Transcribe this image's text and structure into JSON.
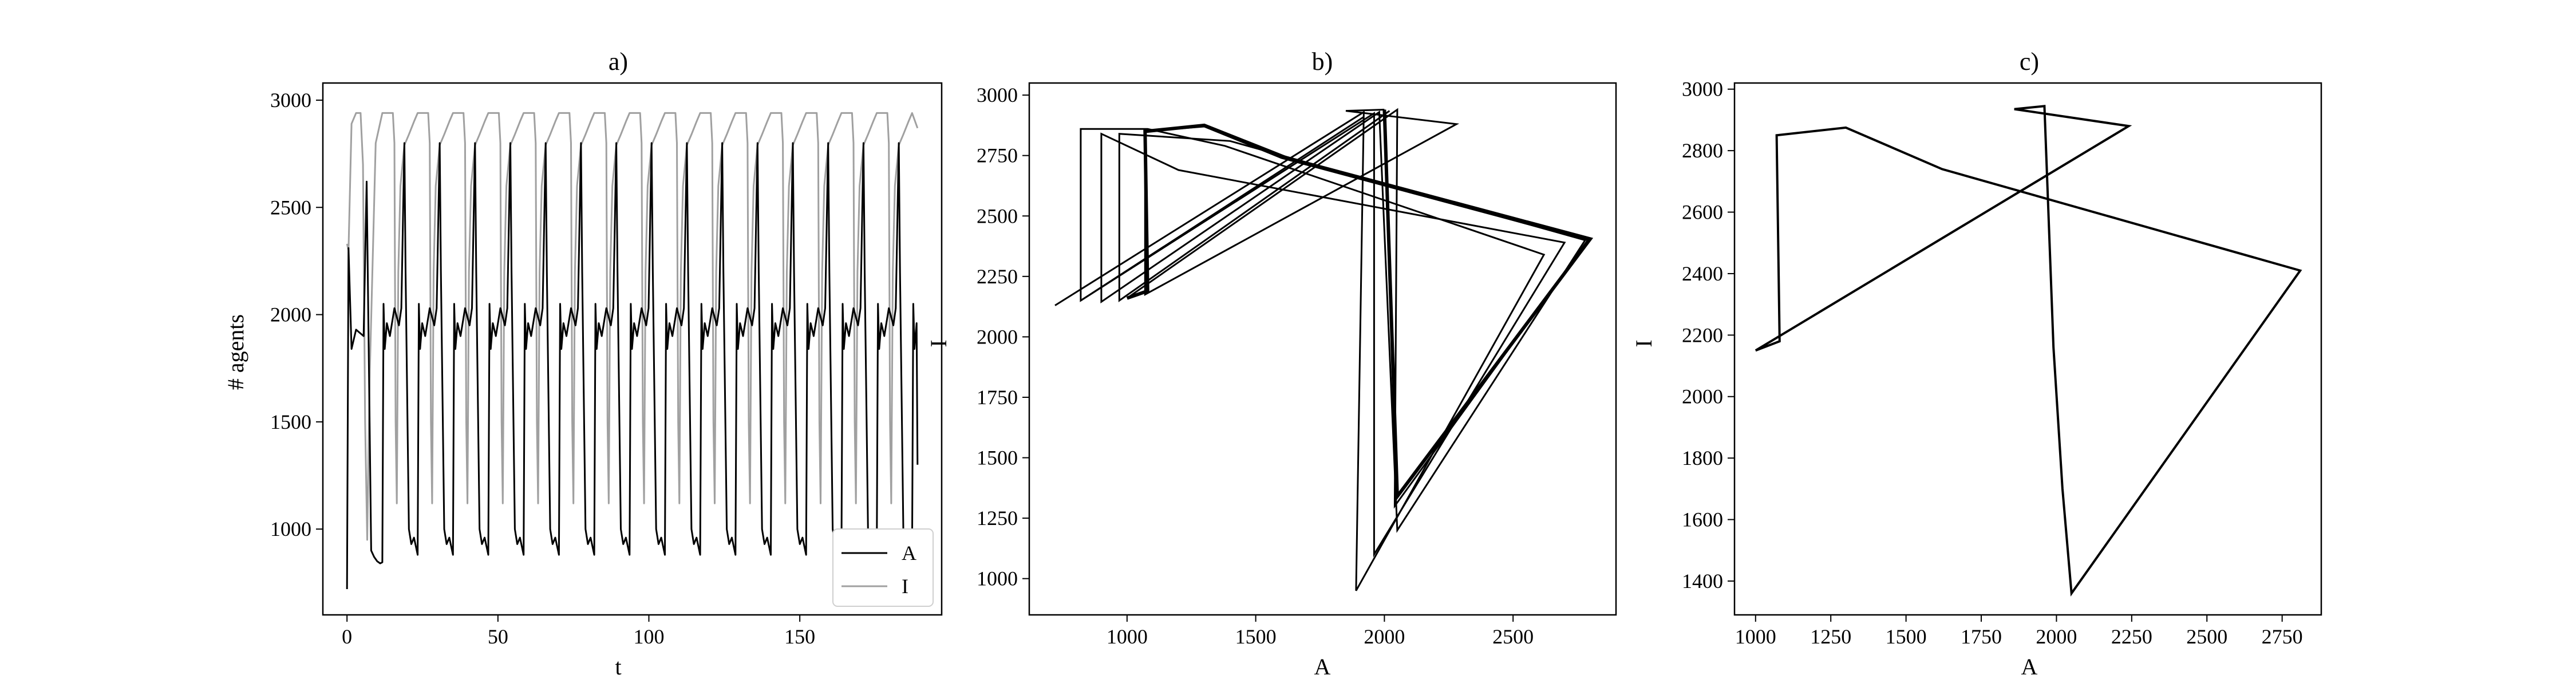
{
  "figure": {
    "panels": [
      {
        "title": "a)",
        "xlabel": "t",
        "ylabel": "# agents"
      },
      {
        "title": "b)",
        "xlabel": "A",
        "ylabel": "I"
      },
      {
        "title": "c)",
        "xlabel": "A",
        "ylabel": "I"
      }
    ]
  },
  "colors": {
    "A": "#000000",
    "I": "#a0a0a0",
    "axes": "#000000",
    "background": "#ffffff"
  },
  "chart_data": [
    {
      "type": "line",
      "title": "a)",
      "xlabel": "t",
      "ylabel": "# agents",
      "xlim": [
        -8,
        197
      ],
      "ylim": [
        600,
        3080
      ],
      "xticks": [
        0,
        50,
        100,
        150
      ],
      "yticks": [
        1000,
        1500,
        2000,
        2500,
        3000
      ],
      "legend_position": "lower-right",
      "period": 11.7,
      "t_end": 189,
      "series": [
        {
          "name": "A",
          "color": "#000000",
          "first_cycle": [
            [
              0,
              720
            ],
            [
              0.5,
              2310
            ],
            [
              1.5,
              1840
            ],
            [
              3,
              1930
            ],
            [
              5.5,
              1900
            ],
            [
              6.5,
              2620
            ],
            [
              8,
              900
            ],
            [
              9,
              870
            ],
            [
              10,
              850
            ],
            [
              11,
              840
            ],
            [
              11.7,
              845
            ]
          ],
          "cycle": [
            [
              0,
              840
            ],
            [
              0.4,
              2050
            ],
            [
              0.8,
              1840
            ],
            [
              1.5,
              1960
            ],
            [
              2.5,
              1900
            ],
            [
              4,
              2030
            ],
            [
              5.5,
              1950
            ],
            [
              6.3,
              2030
            ],
            [
              7.3,
              2800
            ],
            [
              7.7,
              2200
            ],
            [
              8.8,
              1000
            ],
            [
              9.6,
              930
            ],
            [
              10.5,
              960
            ],
            [
              11.7,
              880
            ]
          ],
          "last_point": [
            189,
            1300
          ]
        },
        {
          "name": "I",
          "color": "#a0a0a0",
          "first_cycle": [
            [
              0,
              2330
            ],
            [
              0.5,
              2300
            ],
            [
              1.5,
              2890
            ],
            [
              3,
              2940
            ],
            [
              4.5,
              2940
            ],
            [
              5.3,
              2700
            ],
            [
              6,
              1500
            ],
            [
              6.7,
              950
            ],
            [
              7.5,
              1700
            ],
            [
              9.5,
              2800
            ],
            [
              11.7,
              2940
            ]
          ],
          "cycle": [
            [
              0,
              2940
            ],
            [
              3.5,
              2940
            ],
            [
              4,
              2800
            ],
            [
              4.4,
              1500
            ],
            [
              4.8,
              1120
            ],
            [
              5.3,
              2200
            ],
            [
              6,
              2600
            ],
            [
              7.3,
              2790
            ],
            [
              8.8,
              2840
            ],
            [
              10.5,
              2900
            ],
            [
              11.7,
              2940
            ]
          ],
          "last_point": [
            189,
            2870
          ]
        }
      ]
    },
    {
      "type": "line",
      "title": "b)",
      "xlabel": "A",
      "ylabel": "I",
      "xlim": [
        620,
        2900
      ],
      "ylim": [
        850,
        3050
      ],
      "xticks": [
        1000,
        1500,
        2000,
        2500
      ],
      "yticks": [
        1000,
        1250,
        1500,
        1750,
        2000,
        2250,
        2500,
        2750,
        3000
      ],
      "series": [
        {
          "loops": [
            [
              [
                720,
                2130
              ],
              [
                1920,
                2930
              ],
              [
                1890,
                950
              ],
              [
                2620,
                2340
              ],
              [
                1380,
                2790
              ],
              [
                1080,
                2860
              ],
              [
                820,
                2860
              ],
              [
                820,
                2150
              ],
              [
                1920,
                2910
              ]
            ],
            [
              [
                820,
                2150
              ],
              [
                1960,
                2925
              ],
              [
                1960,
                1100
              ],
              [
                2700,
                2390
              ],
              [
                1200,
                2690
              ],
              [
                900,
                2840
              ],
              [
                900,
                2145
              ],
              [
                1980,
                2930
              ],
              [
                2050,
                1200
              ],
              [
                2780,
                2400
              ],
              [
                1400,
                2810
              ],
              [
                970,
                2840
              ],
              [
                970,
                2150
              ],
              [
                2020,
                2935
              ]
            ],
            [
              [
                1000,
                2160
              ],
              [
                2050,
                2940
              ],
              [
                2040,
                1300
              ],
              [
                2790,
                2400
              ],
              [
                1600,
                2740
              ],
              [
                1300,
                2870
              ],
              [
                1070,
                2850
              ],
              [
                1070,
                2175
              ],
              [
                2280,
                2880
              ],
              [
                1850,
                2935
              ],
              [
                2000,
                2940
              ]
            ]
          ]
        }
      ]
    },
    {
      "type": "line",
      "title": "c)",
      "xlabel": "A",
      "ylabel": "I",
      "xlim": [
        930,
        2880
      ],
      "ylim": [
        1290,
        3020
      ],
      "xticks": [
        1000,
        1250,
        1500,
        1750,
        2000,
        2250,
        2500,
        2750
      ],
      "yticks": [
        1400,
        1600,
        1800,
        2000,
        2200,
        2400,
        2600,
        2800,
        3000
      ],
      "series": [
        {
          "path": [
            [
              1000,
              2150
            ],
            [
              1080,
              2180
            ],
            [
              1070,
              2850
            ],
            [
              1300,
              2875
            ],
            [
              1620,
              2740
            ],
            [
              2810,
              2410
            ],
            [
              2050,
              1360
            ],
            [
              2020,
              1700
            ],
            [
              1990,
              2160
            ],
            [
              1960,
              2945
            ],
            [
              1860,
              2935
            ],
            [
              2240,
              2880
            ],
            [
              1000,
              2150
            ]
          ]
        }
      ]
    }
  ]
}
